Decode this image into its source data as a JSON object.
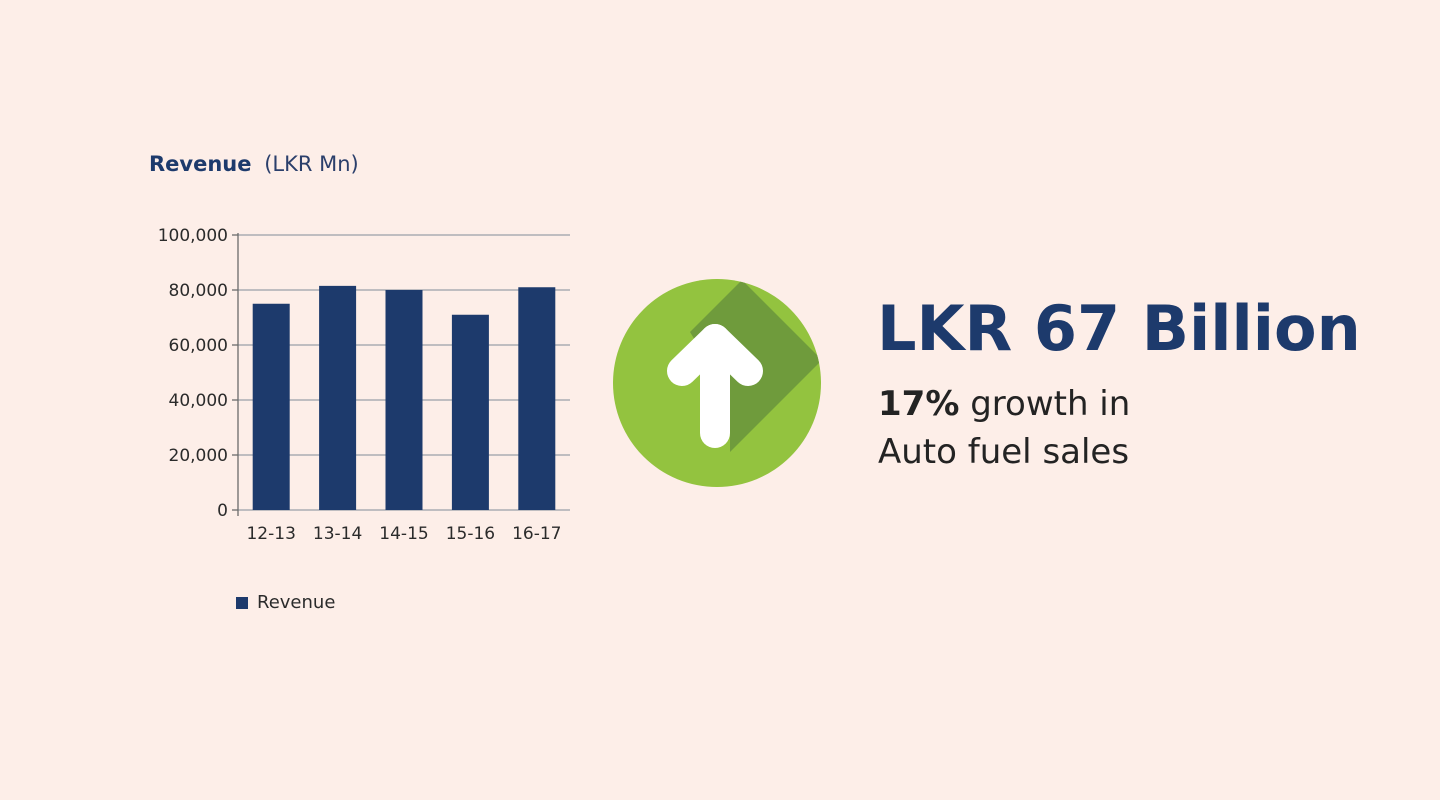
{
  "chart_title": {
    "bold": "Revenue",
    "unit": "(LKR Mn)"
  },
  "chart_data": {
    "type": "bar",
    "title": "Revenue (LKR Mn)",
    "categories": [
      "12-13",
      "13-14",
      "14-15",
      "15-16",
      "16-17"
    ],
    "series": [
      {
        "name": "Revenue",
        "values": [
          75000,
          81500,
          80000,
          71000,
          81000
        ]
      }
    ],
    "ylim": [
      0,
      100000
    ],
    "yticks": [
      {
        "value": 0,
        "label": "0"
      },
      {
        "value": 20000,
        "label": "20,000"
      },
      {
        "value": 40000,
        "label": "40,000"
      },
      {
        "value": 60000,
        "label": "60,000"
      },
      {
        "value": 80000,
        "label": "80,000"
      },
      {
        "value": 100000,
        "label": "100,000"
      }
    ],
    "grid": true,
    "legend_position": "bottom-left",
    "bar_color": "#1d3a6c"
  },
  "legend": {
    "label": "Revenue"
  },
  "highlight": {
    "headline": "LKR 67 Billion",
    "percent": "17%",
    "line1_rest": " growth in",
    "line2": "Auto fuel sales"
  },
  "icon": {
    "name": "up-arrow-icon",
    "circle_color": "#93c33f",
    "shadow_color": "#6f9b3c"
  }
}
